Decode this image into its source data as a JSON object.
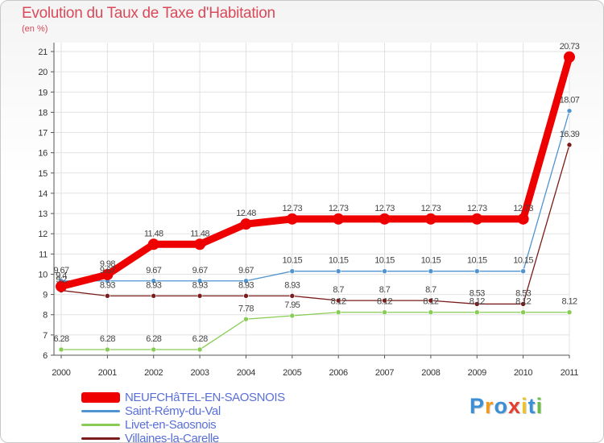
{
  "chart_data": {
    "type": "line",
    "title": "Evolution du Taux de Taxe d'Habitation",
    "ylabel": "(en %)",
    "xlabel": "",
    "x": [
      "2000",
      "2001",
      "2002",
      "2003",
      "2004",
      "2005",
      "2006",
      "2007",
      "2008",
      "2009",
      "2010",
      "2011"
    ],
    "ylim": [
      6,
      21
    ],
    "yticks": [
      "6",
      "7",
      "8",
      "9",
      "10",
      "11",
      "12",
      "13",
      "14",
      "15",
      "16",
      "17",
      "18",
      "19",
      "20",
      "21"
    ],
    "series": [
      {
        "name": "NEUFCHâTEL-EN-SAOSNOIS",
        "color": "#ee0000",
        "values": [
          9.4,
          9.98,
          11.48,
          11.48,
          12.48,
          12.73,
          12.73,
          12.73,
          12.73,
          12.73,
          12.73,
          20.73
        ],
        "labels": [
          "9.4",
          "9.98",
          "11.48",
          "11.48",
          "12.48",
          "12.73",
          "12.73",
          "12.73",
          "12.73",
          "12.73",
          "12.73",
          "20.73"
        ]
      },
      {
        "name": "Saint-Rémy-du-Val",
        "color": "#4f94d0",
        "values": [
          9.67,
          9.67,
          9.67,
          9.67,
          9.67,
          10.15,
          10.15,
          10.15,
          10.15,
          10.15,
          10.15,
          18.07
        ],
        "labels": [
          "9.67",
          "9.67",
          "9.67",
          "9.67",
          "9.67",
          "10.15",
          "10.15",
          "10.15",
          "10.15",
          "10.15",
          "10.15",
          "18.07"
        ]
      },
      {
        "name": "Livet-en-Saosnois",
        "color": "#88cc55",
        "values": [
          6.28,
          6.28,
          6.28,
          6.28,
          7.78,
          7.95,
          8.12,
          8.12,
          8.12,
          8.12,
          8.12,
          8.12
        ],
        "labels": [
          "6.28",
          "6.28",
          "6.28",
          "6.28",
          "7.78",
          "7.95",
          "8.12",
          "8.12",
          "8.12",
          "8.12",
          "8.12",
          "8.12"
        ]
      },
      {
        "name": "Villaines-la-Carelle",
        "color": "#7a1c1c",
        "values": [
          9.2,
          8.93,
          8.93,
          8.93,
          8.93,
          8.93,
          8.7,
          8.7,
          8.7,
          8.53,
          8.53,
          16.39
        ],
        "labels": [
          "9.2",
          "8.93",
          "8.93",
          "8.93",
          "8.93",
          "8.93",
          "8.7",
          "8.7",
          "8.7",
          "8.53",
          "8.53",
          "16.39"
        ]
      }
    ],
    "legend_position": "bottom-left"
  },
  "brand": {
    "letters": [
      "P",
      "r",
      "o",
      "x",
      "i",
      "t",
      "i"
    ],
    "colors": [
      "#3a8fd6",
      "#f29a1e",
      "#3a8fd6",
      "#e63d2e",
      "#f2c21e",
      "#3a8fd6",
      "#6cbd45"
    ]
  }
}
